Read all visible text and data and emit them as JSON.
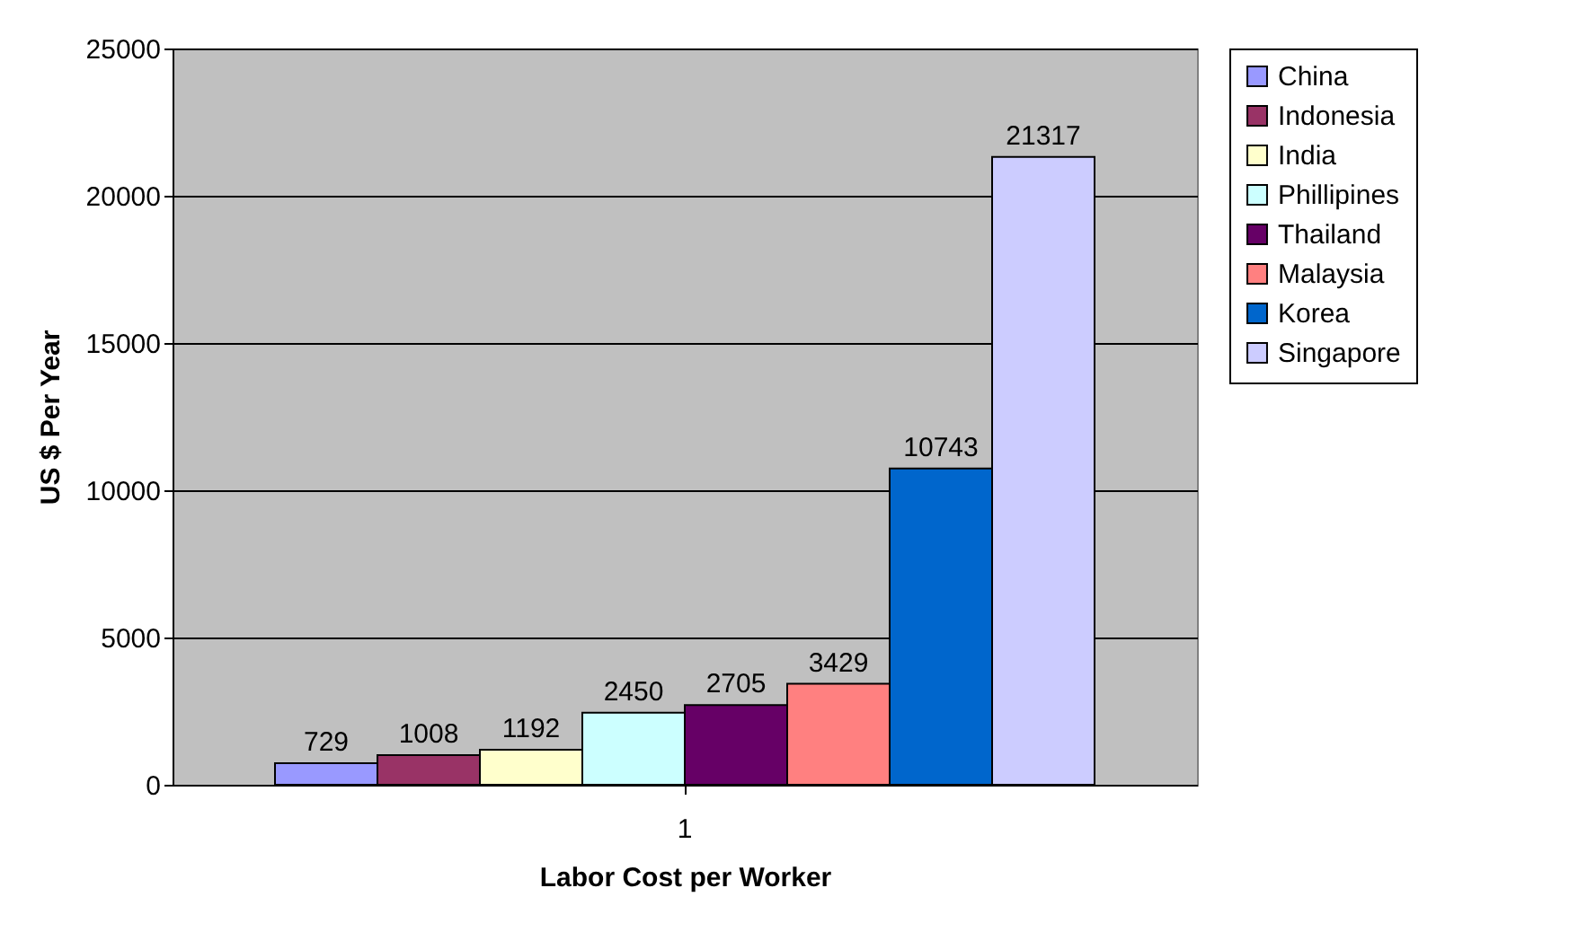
{
  "chart_data": {
    "type": "bar",
    "xlabel": "Labor Cost per Worker",
    "ylabel": "US $ Per Year",
    "categories": [
      "1"
    ],
    "series": [
      {
        "name": "China",
        "color": "#9999ff",
        "values": [
          729
        ]
      },
      {
        "name": "Indonesia",
        "color": "#993366",
        "values": [
          1008
        ]
      },
      {
        "name": "India",
        "color": "#ffffcc",
        "values": [
          1192
        ]
      },
      {
        "name": "Phillipines",
        "color": "#ccffff",
        "values": [
          2450
        ]
      },
      {
        "name": "Thailand",
        "color": "#660066",
        "values": [
          2705
        ]
      },
      {
        "name": "Malaysia",
        "color": "#ff8080",
        "values": [
          3429
        ]
      },
      {
        "name": "Korea",
        "color": "#0066cc",
        "values": [
          10743
        ]
      },
      {
        "name": "Singapore",
        "color": "#ccccff",
        "values": [
          21317
        ]
      }
    ],
    "ylim": [
      0,
      25000
    ],
    "yticks": [
      0,
      5000,
      10000,
      15000,
      20000,
      25000
    ],
    "grid": "y",
    "legend": "right",
    "data_labels": true
  }
}
